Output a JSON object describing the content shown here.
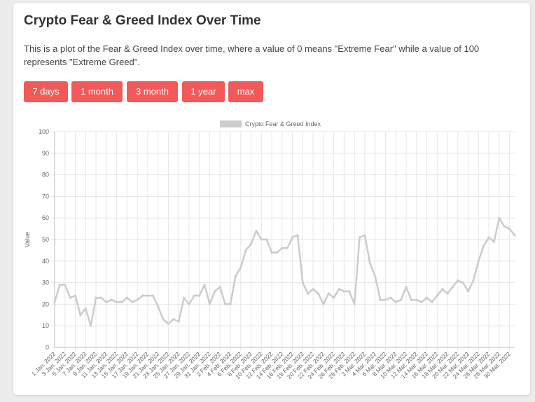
{
  "page": {
    "title": "Crypto Fear & Greed Index Over Time",
    "description": "This is a plot of the Fear & Greed Index over time, where a value of 0 means \"Extreme Fear\" while a value of 100 represents \"Extreme Greed\"."
  },
  "buttons": [
    {
      "label": "7 days"
    },
    {
      "label": "1 month"
    },
    {
      "label": "3 month"
    },
    {
      "label": "1 year"
    },
    {
      "label": "max"
    }
  ],
  "colors": {
    "button_bg": "#f25a5a",
    "line": "#cccccc",
    "grid": "#e6e6e6"
  },
  "chart_data": {
    "type": "line",
    "ylabel": "Value",
    "ylim": [
      0,
      100
    ],
    "yticks": [
      0,
      10,
      20,
      30,
      40,
      50,
      60,
      70,
      80,
      90,
      100
    ],
    "grid": true,
    "legend_position": "top",
    "series": [
      {
        "name": "Crypto Fear & Greed Index",
        "values": [
          21,
          29,
          29,
          23,
          24,
          15,
          18,
          10,
          23,
          23,
          21,
          22,
          21,
          21,
          23,
          21,
          22,
          24,
          24,
          24,
          19,
          13,
          11,
          13,
          12,
          23,
          20,
          24,
          24,
          29,
          20,
          26,
          28,
          20,
          20,
          33,
          37,
          45,
          48,
          54,
          50,
          50,
          44,
          44,
          46,
          46,
          51,
          52,
          30,
          25,
          27,
          25,
          20,
          25,
          23,
          27,
          26,
          26,
          20,
          51,
          52,
          39,
          33,
          22,
          22,
          23,
          21,
          22,
          28,
          22,
          22,
          21,
          23,
          21,
          24,
          27,
          25,
          28,
          31,
          30,
          26,
          31,
          40,
          47,
          51,
          49,
          60,
          56,
          55,
          52
        ]
      }
    ],
    "x": [
      "1 Jan. 2022",
      "2 Jan. 2022",
      "3 Jan. 2022",
      "4 Jan. 2022",
      "5 Jan. 2022",
      "6 Jan. 2022",
      "7 Jan. 2022",
      "8 Jan. 2022",
      "9 Jan. 2022",
      "10 Jan. 2022",
      "11 Jan. 2022",
      "12 Jan. 2022",
      "13 Jan. 2022",
      "14 Jan. 2022",
      "15 Jan. 2022",
      "16 Jan. 2022",
      "17 Jan. 2022",
      "18 Jan. 2022",
      "19 Jan. 2022",
      "20 Jan. 2022",
      "21 Jan. 2022",
      "22 Jan. 2022",
      "23 Jan. 2022",
      "24 Jan. 2022",
      "25 Jan. 2022",
      "26 Jan. 2022",
      "27 Jan. 2022",
      "28 Jan. 2022",
      "29 Jan. 2022",
      "30 Jan. 2022",
      "31 Jan. 2022",
      "1 Feb. 2022",
      "2 Feb. 2022",
      "3 Feb. 2022",
      "4 Feb. 2022",
      "5 Feb. 2022",
      "6 Feb. 2022",
      "7 Feb. 2022",
      "8 Feb. 2022",
      "9 Feb. 2022",
      "10 Feb. 2022",
      "11 Feb. 2022",
      "12 Feb. 2022",
      "13 Feb. 2022",
      "14 Feb. 2022",
      "15 Feb. 2022",
      "16 Feb. 2022",
      "17 Feb. 2022",
      "18 Feb. 2022",
      "19 Feb. 2022",
      "20 Feb. 2022",
      "21 Feb. 2022",
      "22 Feb. 2022",
      "23 Feb. 2022",
      "24 Feb. 2022",
      "25 Feb. 2022",
      "26 Feb. 2022",
      "27 Feb. 2022",
      "28 Feb. 2022",
      "1 Mar. 2022",
      "2 Mar. 2022",
      "3 Mar. 2022",
      "4 Mar. 2022",
      "5 Mar. 2022",
      "6 Mar. 2022",
      "7 Mar. 2022",
      "8 Mar. 2022",
      "9 Mar. 2022",
      "10 Mar. 2022",
      "11 Mar. 2022",
      "12 Mar. 2022",
      "13 Mar. 2022",
      "14 Mar. 2022",
      "15 Mar. 2022",
      "16 Mar. 2022",
      "17 Mar. 2022",
      "18 Mar. 2022",
      "19 Mar. 2022",
      "20 Mar. 2022",
      "21 Mar. 2022",
      "22 Mar. 2022",
      "23 Mar. 2022",
      "24 Mar. 2022",
      "25 Mar. 2022",
      "26 Mar. 2022",
      "27 Mar. 2022",
      "28 Mar. 2022",
      "29 Mar. 2022",
      "30 Mar. 2022",
      "31 Mar. 2022"
    ],
    "xticks": [
      "1 Jan. 2022",
      "3 Jan. 2022",
      "5 Jan. 2022",
      "7 Jan. 2022",
      "9 Jan. 2022",
      "11 Jan. 2022",
      "13 Jan. 2022",
      "15 Jan. 2022",
      "17 Jan. 2022",
      "19 Jan. 2022",
      "21 Jan. 2022",
      "23 Jan. 2022",
      "25 Jan. 2022",
      "27 Jan. 2022",
      "29 Jan. 2022",
      "31 Jan. 2022",
      "2 Feb. 2022",
      "4 Feb. 2022",
      "6 Feb. 2022",
      "8 Feb. 2022",
      "10 Feb. 2022",
      "12 Feb. 2022",
      "14 Feb. 2022",
      "16 Feb. 2022",
      "18 Feb. 2022",
      "20 Feb. 2022",
      "22 Feb. 2022",
      "24 Feb. 2022",
      "26 Feb. 2022",
      "28 Feb. 2022",
      "2 Mar. 2022",
      "4 Mar. 2022",
      "6 Mar. 2022",
      "8 Mar. 2022",
      "10 Mar. 2022",
      "12 Mar. 2022",
      "14 Mar. 2022",
      "16 Mar. 2022",
      "18 Mar. 2022",
      "20 Mar. 2022",
      "22 Mar. 2022",
      "24 Mar. 2022",
      "26 Mar. 2022",
      "28 Mar. 2022",
      "30 Mar. 2022"
    ]
  }
}
